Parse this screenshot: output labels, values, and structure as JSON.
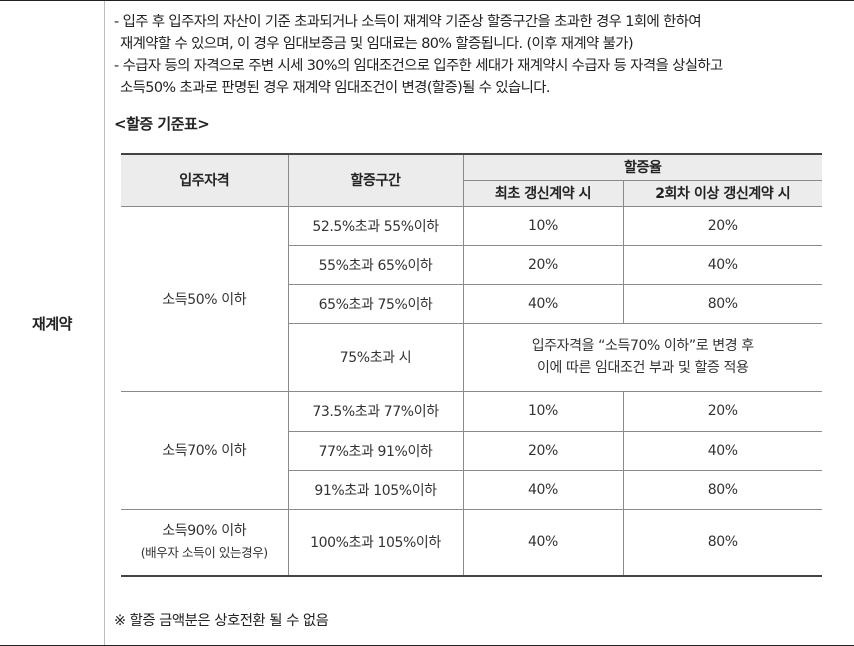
{
  "section_label": "재계약",
  "bullets": [
    "- 입주 후 입주자의 자산이 기준 초과되거나 소득이 재계약 기준상 할증구간을 초과한 경우 1회에 한하여",
    "재계약할 수 있으며, 이 경우 임대보증금 및 임대료는 80% 할증됩니다. (이후 재계약 불가)",
    "- 수급자 등의 자격으로 주변 시세 30%의 임대조건으로 입주한 세대가 재계약시 수급자 등 자격을 상실하고",
    "소득50% 초과로 판명된 경우 재계약 임대조건이 변경(할증)될 수 있습니다."
  ],
  "table_title": "<할증 기준표>",
  "table": {
    "headers": {
      "qualification": "입주자격",
      "range": "할증구간",
      "rate": "할증율",
      "first": "최초 갱신계약 시",
      "second": "2회차 이상 갱신계약 시"
    },
    "groups": [
      {
        "qualification": "소득50% 이하",
        "qualification_sub": "",
        "rows": [
          {
            "range": "52.5%초과 55%이하",
            "first": "10%",
            "second": "20%"
          },
          {
            "range": "55%초과 65%이하",
            "first": "20%",
            "second": "40%"
          },
          {
            "range": "65%초과 75%이하",
            "first": "40%",
            "second": "80%"
          },
          {
            "range": "75%초과 시",
            "note_line1": "입주자격을 “소득70% 이하”로  변경 후",
            "note_line2": "이에 따른 임대조건 부과 및 할증 적용"
          }
        ]
      },
      {
        "qualification": "소득70% 이하",
        "qualification_sub": "",
        "rows": [
          {
            "range": "73.5%초과 77%이하",
            "first": "10%",
            "second": "20%"
          },
          {
            "range": "77%초과 91%이하",
            "first": "20%",
            "second": "40%"
          },
          {
            "range": "91%초과 105%이하",
            "first": "40%",
            "second": "80%"
          }
        ]
      },
      {
        "qualification": "소득90% 이하",
        "qualification_sub": "(배우자 소득이 있는경우)",
        "rows": [
          {
            "range": "100%초과 105%이하",
            "first": "40%",
            "second": "80%"
          }
        ]
      }
    ]
  },
  "footnote": "※ 할증 금액분은 상호전환 될 수 없음"
}
